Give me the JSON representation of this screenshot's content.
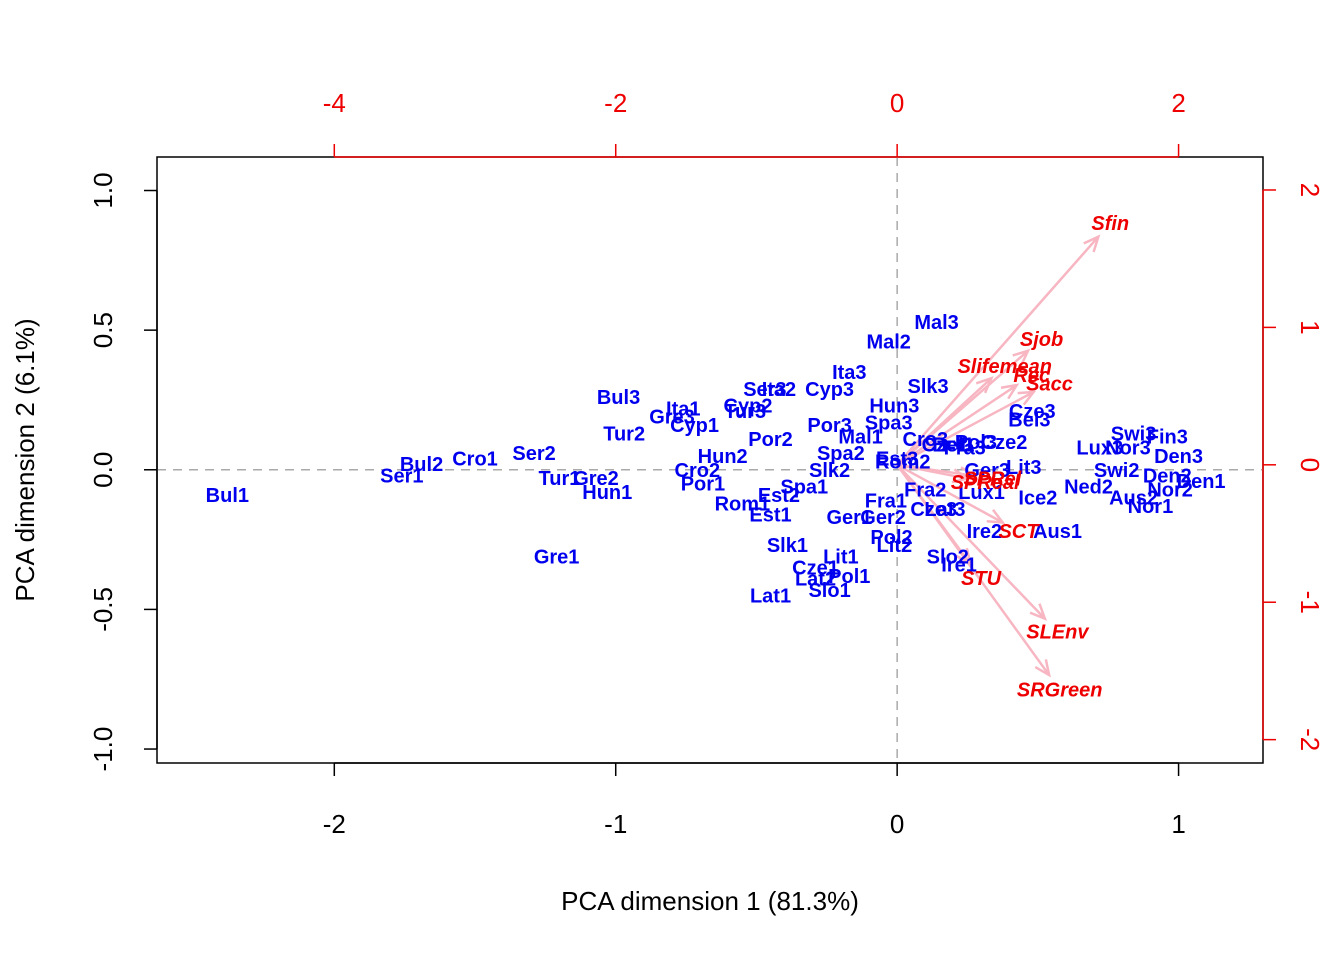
{
  "colors": {
    "observation": "#0000EE",
    "variable_label": "#EE0000",
    "arrow": "#F7B6C2",
    "top_right_axes": "#EE0000",
    "axes": "#000000",
    "reference_lines": "#AAAAAA"
  },
  "chart_data": {
    "type": "scatter",
    "subtype": "biplot",
    "title": "",
    "xlabel": "PCA dimension 1 (81.3%)",
    "ylabel": "PCA dimension 2 (6.1%)",
    "xlim": [
      -2.63,
      1.3
    ],
    "ylim": [
      -1.05,
      1.12
    ],
    "xticks": [
      -2,
      -1,
      0,
      1
    ],
    "xtick_labels": [
      "-2",
      "-1",
      "0",
      "1"
    ],
    "yticks": [
      -1.0,
      -0.5,
      0.0,
      0.5,
      1.0
    ],
    "ytick_labels": [
      "-1.0",
      "-0.5",
      "0.0",
      "0.5",
      "1.0"
    ],
    "secondary_x": {
      "ticks": [
        -4,
        -2,
        0,
        2
      ],
      "tick_labels": [
        "-4",
        "-2",
        "0",
        "2"
      ],
      "lim": [
        -5.26,
        2.6
      ]
    },
    "secondary_y": {
      "ticks": [
        -2,
        -1,
        0,
        1,
        2
      ],
      "tick_labels": [
        "-2",
        "-1",
        "0",
        "1",
        "2"
      ],
      "lim": [
        -2.17,
        2.24
      ]
    },
    "reference_lines": {
      "x": 0,
      "y": 0
    },
    "grid": false,
    "observations": [
      {
        "label": "Bul1",
        "x": -2.38,
        "y": -0.09
      },
      {
        "label": "Ser1",
        "x": -1.76,
        "y": -0.02
      },
      {
        "label": "Bul2",
        "x": -1.69,
        "y": 0.02
      },
      {
        "label": "Cro1",
        "x": -1.5,
        "y": 0.04
      },
      {
        "label": "Ser2",
        "x": -1.29,
        "y": 0.06
      },
      {
        "label": "Tur1",
        "x": -1.2,
        "y": -0.03
      },
      {
        "label": "Gre2",
        "x": -1.07,
        "y": -0.03
      },
      {
        "label": "Hun1",
        "x": -1.03,
        "y": -0.08
      },
      {
        "label": "Gre1",
        "x": -1.21,
        "y": -0.31
      },
      {
        "label": "Bul3",
        "x": -0.99,
        "y": 0.26
      },
      {
        "label": "Tur2",
        "x": -0.97,
        "y": 0.13
      },
      {
        "label": "Gre3",
        "x": -0.8,
        "y": 0.19
      },
      {
        "label": "Ita1",
        "x": -0.76,
        "y": 0.22
      },
      {
        "label": "Cyp1",
        "x": -0.72,
        "y": 0.16
      },
      {
        "label": "Cyp2",
        "x": -0.53,
        "y": 0.23
      },
      {
        "label": "Tur3",
        "x": -0.54,
        "y": 0.21
      },
      {
        "label": "Ser3",
        "x": -0.47,
        "y": 0.29
      },
      {
        "label": "Ita2",
        "x": -0.42,
        "y": 0.29
      },
      {
        "label": "Cyp3",
        "x": -0.24,
        "y": 0.29
      },
      {
        "label": "Por2",
        "x": -0.45,
        "y": 0.11
      },
      {
        "label": "Hun2",
        "x": -0.62,
        "y": 0.05
      },
      {
        "label": "Cro2",
        "x": -0.71,
        "y": -0.0
      },
      {
        "label": "Por1",
        "x": -0.69,
        "y": -0.05
      },
      {
        "label": "Est2",
        "x": -0.42,
        "y": -0.09
      },
      {
        "label": "Rom1",
        "x": -0.55,
        "y": -0.12
      },
      {
        "label": "Est1",
        "x": -0.45,
        "y": -0.16
      },
      {
        "label": "Spa1",
        "x": -0.33,
        "y": -0.06
      },
      {
        "label": "Slk2",
        "x": -0.24,
        "y": 0.0
      },
      {
        "label": "Spa2",
        "x": -0.2,
        "y": 0.06
      },
      {
        "label": "Por3",
        "x": -0.24,
        "y": 0.16
      },
      {
        "label": "Spa3",
        "x": -0.03,
        "y": 0.17
      },
      {
        "label": "Mal1",
        "x": -0.13,
        "y": 0.12
      },
      {
        "label": "Ita3",
        "x": -0.17,
        "y": 0.35
      },
      {
        "label": "Hun3",
        "x": -0.01,
        "y": 0.23
      },
      {
        "label": "Slk3",
        "x": 0.11,
        "y": 0.3
      },
      {
        "label": "Mal2",
        "x": -0.03,
        "y": 0.46
      },
      {
        "label": "Mal3",
        "x": 0.14,
        "y": 0.53
      },
      {
        "label": "Est3",
        "x": 0.0,
        "y": 0.04
      },
      {
        "label": "Rom2",
        "x": 0.02,
        "y": 0.03
      },
      {
        "label": "Cro3",
        "x": 0.1,
        "y": 0.11
      },
      {
        "label": "Cze1",
        "x": 0.17,
        "y": 0.09
      },
      {
        "label": "Bel1",
        "x": 0.2,
        "y": 0.09
      },
      {
        "label": "Fra3",
        "x": 0.24,
        "y": 0.08
      },
      {
        "label": "Pol3",
        "x": 0.28,
        "y": 0.1
      },
      {
        "label": "Cze2",
        "x": 0.38,
        "y": 0.1
      },
      {
        "label": "Ger3",
        "x": 0.32,
        "y": 0.0
      },
      {
        "label": "Lit3",
        "x": 0.45,
        "y": 0.01
      },
      {
        "label": "Fra2",
        "x": 0.1,
        "y": -0.07
      },
      {
        "label": "Lux1",
        "x": 0.3,
        "y": -0.08
      },
      {
        "label": "Ice2",
        "x": 0.5,
        "y": -0.1
      },
      {
        "label": "Fra1",
        "x": -0.04,
        "y": -0.11
      },
      {
        "label": "Ger1",
        "x": -0.17,
        "y": -0.17
      },
      {
        "label": "Ger2",
        "x": -0.05,
        "y": -0.17
      },
      {
        "label": "Cze3",
        "x": 0.13,
        "y": -0.14
      },
      {
        "label": "Lat3",
        "x": 0.17,
        "y": -0.14
      },
      {
        "label": "Pol2",
        "x": -0.02,
        "y": -0.24
      },
      {
        "label": "Lit2",
        "x": -0.01,
        "y": -0.27
      },
      {
        "label": "Ire2",
        "x": 0.31,
        "y": -0.22
      },
      {
        "label": "Aus1",
        "x": 0.57,
        "y": -0.22
      },
      {
        "label": "Slo2",
        "x": 0.18,
        "y": -0.31
      },
      {
        "label": "Ire1",
        "x": 0.22,
        "y": -0.34
      },
      {
        "label": "Slk1",
        "x": -0.39,
        "y": -0.27
      },
      {
        "label": "Lit1",
        "x": -0.2,
        "y": -0.31
      },
      {
        "label": "Cze1",
        "x": -0.29,
        "y": -0.35
      },
      {
        "label": "Pol1",
        "x": -0.17,
        "y": -0.38
      },
      {
        "label": "Lat2",
        "x": -0.29,
        "y": -0.39
      },
      {
        "label": "Slo1",
        "x": -0.24,
        "y": -0.43
      },
      {
        "label": "Lat1",
        "x": -0.45,
        "y": -0.45
      },
      {
        "label": "Bel3",
        "x": 0.47,
        "y": 0.18
      },
      {
        "label": "Cze3",
        "x": 0.48,
        "y": 0.21
      },
      {
        "label": "Swi3",
        "x": 0.84,
        "y": 0.13
      },
      {
        "label": "Fin3",
        "x": 0.96,
        "y": 0.12
      },
      {
        "label": "Lux3",
        "x": 0.72,
        "y": 0.08
      },
      {
        "label": "Nor3",
        "x": 0.82,
        "y": 0.08
      },
      {
        "label": "Den3",
        "x": 1.0,
        "y": 0.05
      },
      {
        "label": "Den2",
        "x": 0.96,
        "y": -0.02
      },
      {
        "label": "Den1",
        "x": 1.08,
        "y": -0.04
      },
      {
        "label": "Nor2",
        "x": 0.97,
        "y": -0.07
      },
      {
        "label": "Aus2",
        "x": 0.84,
        "y": -0.1
      },
      {
        "label": "Nor1",
        "x": 0.9,
        "y": -0.13
      },
      {
        "label": "Ned2",
        "x": 0.68,
        "y": -0.06
      },
      {
        "label": "Swi2",
        "x": 0.78,
        "y": 0.0
      }
    ],
    "variables": [
      {
        "label": "Sfin",
        "x": 1.43,
        "y": 1.66
      },
      {
        "label": "Sjob",
        "x": 0.93,
        "y": 0.83
      },
      {
        "label": "Slifemean",
        "x": 0.67,
        "y": 0.63
      },
      {
        "label": "Sacc",
        "x": 0.97,
        "y": 0.53
      },
      {
        "label": "Rec",
        "x": 0.85,
        "y": 0.58
      },
      {
        "label": "SPReal",
        "x": 0.5,
        "y": -0.1
      },
      {
        "label": "SPRel",
        "x": 0.55,
        "y": -0.08
      },
      {
        "label": "SCT",
        "x": 0.75,
        "y": -0.42
      },
      {
        "label": "STU",
        "x": 0.52,
        "y": -0.72
      },
      {
        "label": "SLEnv",
        "x": 1.05,
        "y": -1.12
      },
      {
        "label": "SRGreen",
        "x": 1.08,
        "y": -1.53
      }
    ]
  }
}
